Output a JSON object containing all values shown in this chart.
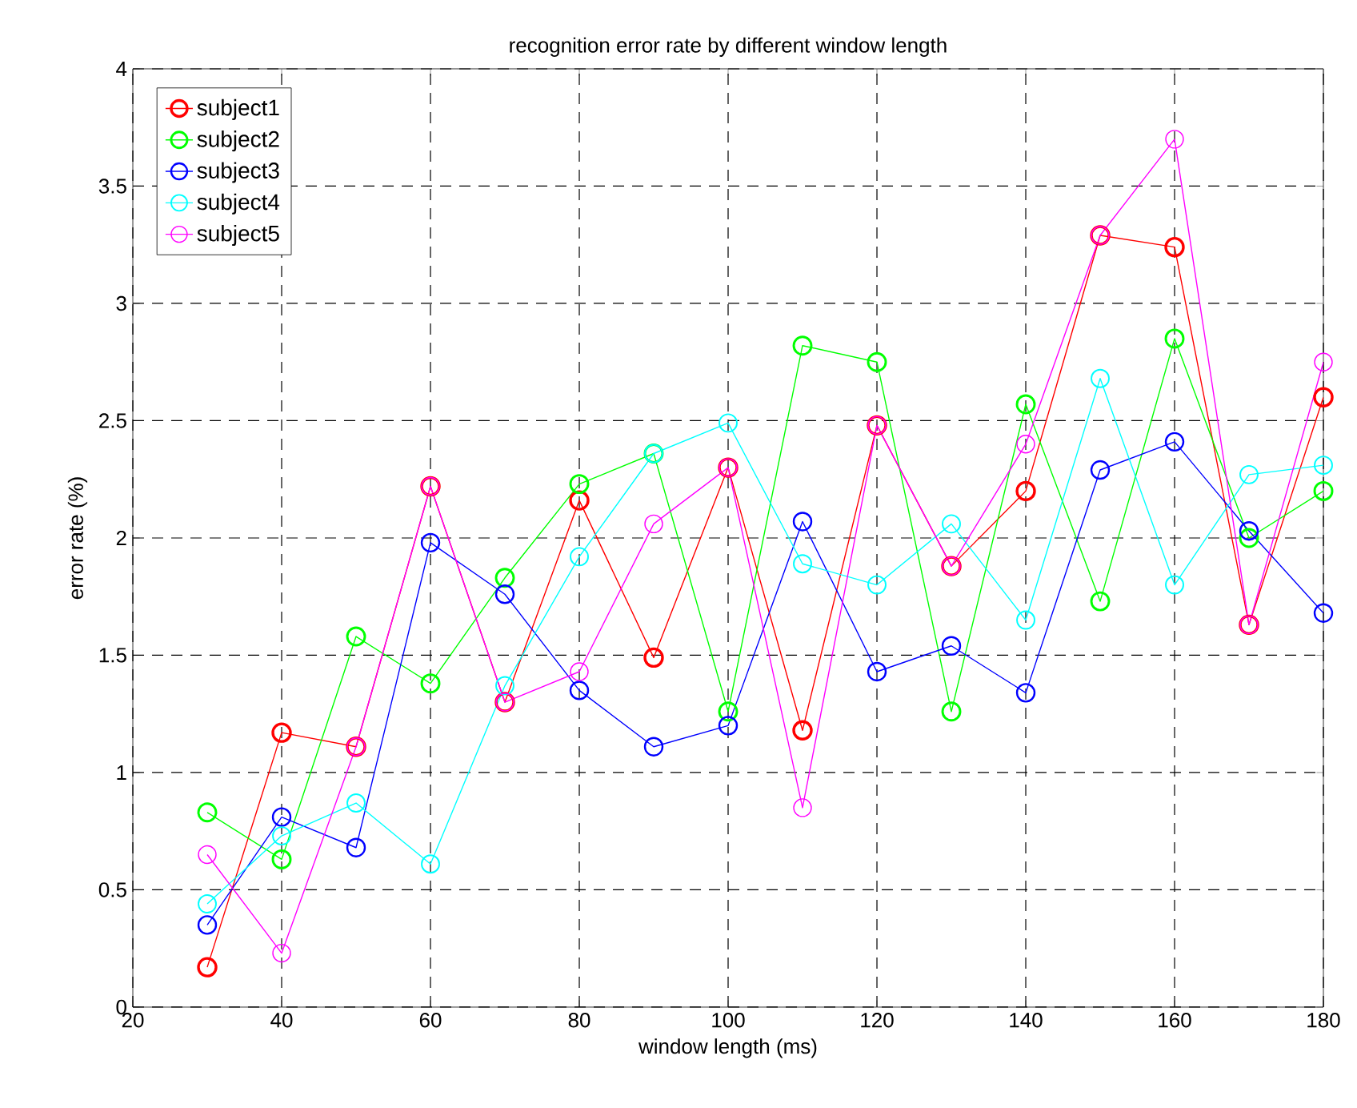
{
  "chart_data": {
    "type": "line",
    "title": "recognition error rate by different window length",
    "xlabel": "window length (ms)",
    "ylabel": "error rate (%)",
    "x": [
      30,
      40,
      50,
      60,
      70,
      80,
      90,
      100,
      110,
      120,
      130,
      140,
      150,
      160,
      170,
      180
    ],
    "xlim": [
      20,
      180
    ],
    "ylim": [
      0,
      4
    ],
    "xticks": [
      20,
      40,
      60,
      80,
      100,
      120,
      140,
      160,
      180
    ],
    "yticks": [
      0,
      0.5,
      1,
      1.5,
      2,
      2.5,
      3,
      3.5,
      4
    ],
    "grid": true,
    "legend": "top left",
    "marker": "circle",
    "line_style": "solid",
    "series": [
      {
        "name": "subject1",
        "color": "#ff0000",
        "values": [
          0.17,
          1.17,
          1.11,
          2.22,
          1.3,
          2.16,
          1.49,
          2.3,
          1.18,
          2.48,
          1.88,
          2.2,
          3.29,
          3.24,
          1.63,
          2.6
        ]
      },
      {
        "name": "subject2",
        "color": "#00ff00",
        "values": [
          0.83,
          0.63,
          1.58,
          1.38,
          1.83,
          2.23,
          2.36,
          1.26,
          2.82,
          2.75,
          1.26,
          2.57,
          1.73,
          2.85,
          2.0,
          2.2
        ]
      },
      {
        "name": "subject3",
        "color": "#0000ff",
        "values": [
          0.35,
          0.81,
          0.68,
          1.98,
          1.76,
          1.35,
          1.11,
          1.2,
          2.07,
          1.43,
          1.54,
          1.34,
          2.29,
          2.41,
          2.03,
          1.68
        ]
      },
      {
        "name": "subject4",
        "color": "#00ffff",
        "values": [
          0.44,
          0.73,
          0.87,
          0.61,
          1.37,
          1.92,
          2.36,
          2.49,
          1.89,
          1.8,
          2.06,
          1.65,
          2.68,
          1.8,
          2.27,
          2.31
        ]
      },
      {
        "name": "subject5",
        "color": "#ff00ff",
        "values": [
          0.65,
          0.23,
          1.11,
          2.22,
          1.3,
          1.43,
          2.06,
          2.3,
          0.85,
          2.48,
          1.88,
          2.4,
          3.29,
          3.7,
          1.63,
          2.75
        ]
      }
    ]
  }
}
